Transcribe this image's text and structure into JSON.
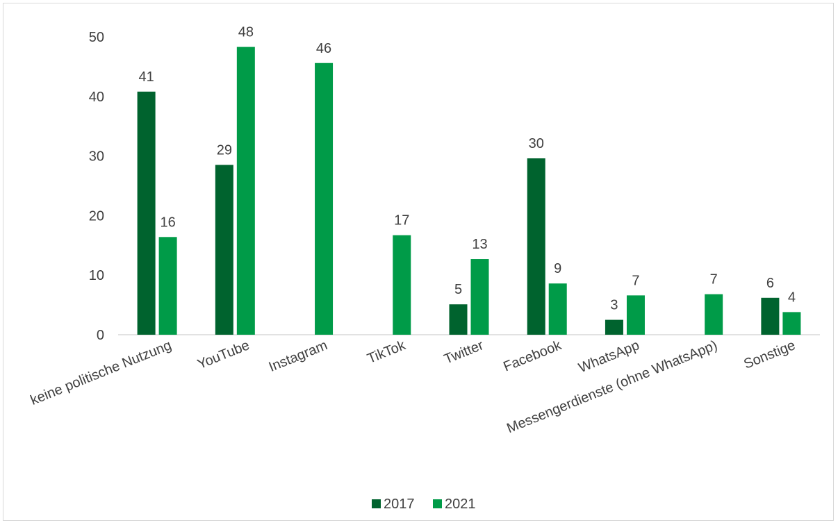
{
  "chart_data": {
    "type": "bar",
    "categories": [
      "keine politische Nutzung",
      "YouTube",
      "Instagram",
      "TikTok",
      "Twitter",
      "Facebook",
      "WhatsApp",
      "Messengerdienste (ohne WhatsApp)",
      "Sonstige"
    ],
    "series": [
      {
        "name": "2017",
        "color": "#00632e",
        "values": [
          40.8,
          28.5,
          null,
          null,
          5.1,
          29.6,
          2.5,
          null,
          6.2
        ],
        "labels": [
          "41",
          "29",
          "",
          "",
          "5",
          "30",
          "3",
          "",
          "6"
        ]
      },
      {
        "name": "2021",
        "color": "#009b48",
        "values": [
          16.4,
          48.3,
          45.6,
          16.7,
          12.7,
          8.6,
          6.6,
          6.8,
          3.8
        ],
        "labels": [
          "16",
          "48",
          "46",
          "17",
          "13",
          "9",
          "7",
          "7",
          "4"
        ]
      }
    ],
    "yticks": [
      "0",
      "10",
      "20",
      "30",
      "40",
      "50"
    ],
    "ylim": [
      0,
      50
    ],
    "title": "",
    "xlabel": "",
    "ylabel": "",
    "grid": false,
    "legend": "bottom-center"
  }
}
